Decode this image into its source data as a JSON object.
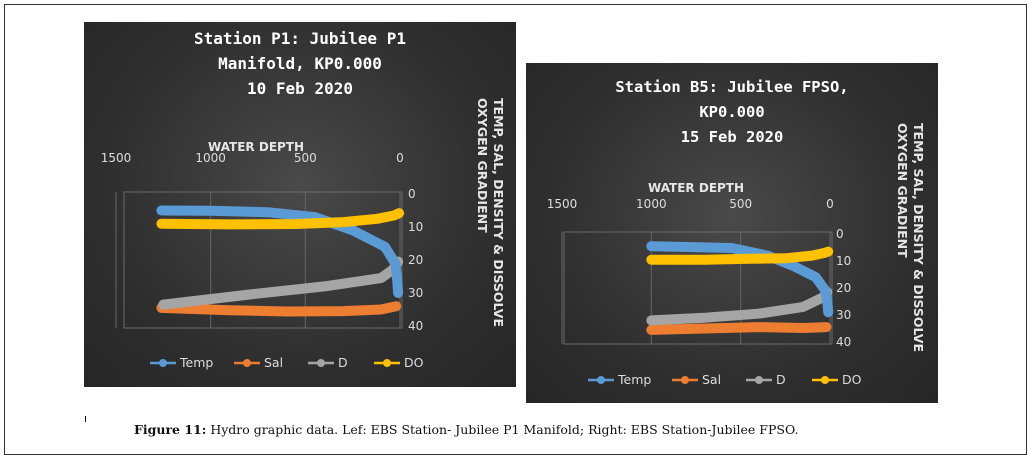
{
  "caption": {
    "figure_label": "Figure 11:",
    "text": " Hydro graphic data. Lef: EBS Station- Jubilee P1 Manifold; Right: EBS Station-Jubilee FPSO."
  },
  "stray_mark": "ı",
  "colors": {
    "Temp": "#5b9bd5",
    "Sal": "#ed7d31",
    "D": "#a5a5a5",
    "DO": "#ffc000"
  },
  "chart_data": [
    {
      "type": "line",
      "title": "Station P1: Jubilee P1\nManifold,  KP0.000\n10 Feb 2020",
      "xlabel": "WATER DEPTH",
      "ylabel": "TEMP, SAL, DENSITY & DISSOLVE\nOXYGEN GRADIENT",
      "x_reversed": true,
      "y_reversed": true,
      "xlim": [
        0,
        1500
      ],
      "ylim": [
        0,
        40
      ],
      "xticks": [
        "1500",
        "1000",
        "500",
        "0"
      ],
      "yticks": [
        "0",
        "10",
        "20",
        "30",
        "40"
      ],
      "legend_position": "bottom",
      "series": [
        {
          "name": "Temp",
          "points": [
            [
              1260,
              5
            ],
            [
              1000,
              5.1
            ],
            [
              700,
              5.5
            ],
            [
              450,
              7
            ],
            [
              250,
              11
            ],
            [
              80,
              16
            ],
            [
              25,
              21
            ],
            [
              15,
              26
            ],
            [
              10,
              30
            ]
          ]
        },
        {
          "name": "Sal",
          "points": [
            [
              1260,
              34.5
            ],
            [
              900,
              35.2
            ],
            [
              600,
              35.6
            ],
            [
              300,
              35.5
            ],
            [
              100,
              35
            ],
            [
              20,
              34
            ]
          ]
        },
        {
          "name": "D",
          "points": [
            [
              1250,
              33.5
            ],
            [
              800,
              30.5
            ],
            [
              400,
              28
            ],
            [
              100,
              25.5
            ],
            [
              40,
              23
            ],
            [
              15,
              21
            ],
            [
              10,
              20.5
            ]
          ]
        },
        {
          "name": "DO",
          "points": [
            [
              1260,
              9
            ],
            [
              900,
              9.2
            ],
            [
              550,
              9.1
            ],
            [
              300,
              8.5
            ],
            [
              120,
              7.5
            ],
            [
              30,
              6.5
            ],
            [
              5,
              5.8
            ]
          ]
        }
      ]
    },
    {
      "type": "line",
      "title": "Station B5: Jubilee FPSO,\nKP0.000\n15 Feb 2020",
      "xlabel": "WATER DEPTH",
      "ylabel": "TEMP, SAL, DENSITY & DISSOLVE\nOXYGEN GRADIENT",
      "x_reversed": true,
      "y_reversed": true,
      "xlim": [
        0,
        1500
      ],
      "ylim": [
        0,
        40
      ],
      "xticks": [
        "1500",
        "1000",
        "500",
        "0"
      ],
      "yticks": [
        "0",
        "10",
        "20",
        "30",
        "40"
      ],
      "legend_position": "bottom",
      "series": [
        {
          "name": "Temp",
          "points": [
            [
              1000,
              4.5
            ],
            [
              800,
              4.8
            ],
            [
              550,
              5.2
            ],
            [
              350,
              8
            ],
            [
              200,
              12
            ],
            [
              80,
              16
            ],
            [
              25,
              21
            ],
            [
              15,
              25
            ],
            [
              10,
              29
            ]
          ]
        },
        {
          "name": "Sal",
          "points": [
            [
              1000,
              35.5
            ],
            [
              700,
              35
            ],
            [
              400,
              34.5
            ],
            [
              150,
              34.8
            ],
            [
              20,
              34.5
            ]
          ]
        },
        {
          "name": "D",
          "points": [
            [
              1000,
              32
            ],
            [
              700,
              31
            ],
            [
              400,
              29.5
            ],
            [
              150,
              27
            ],
            [
              40,
              23.5
            ],
            [
              15,
              21.5
            ]
          ]
        },
        {
          "name": "DO",
          "points": [
            [
              1000,
              9.5
            ],
            [
              700,
              9.5
            ],
            [
              450,
              9.2
            ],
            [
              250,
              9
            ],
            [
              100,
              8
            ],
            [
              30,
              7
            ],
            [
              10,
              6.5
            ]
          ]
        }
      ]
    }
  ]
}
